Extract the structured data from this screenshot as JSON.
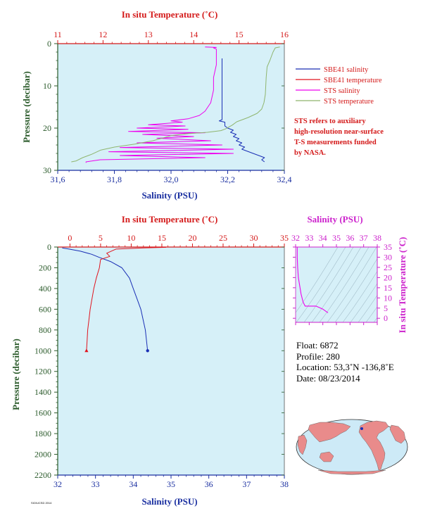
{
  "colors": {
    "plot_bg": "#d6f0f8",
    "sbe41_salinity": "#1a2fb5",
    "sbe41_temperature": "#e0141e",
    "sts_salinity": "#ee00ee",
    "sts_temperature": "#8fb56e",
    "red_axis": "#d41a1a",
    "blue_axis": "#1a2fa0",
    "green_axis": "#2a5a2a",
    "magenta_axis": "#cc22cc"
  },
  "chart_data": [
    {
      "id": "top",
      "type": "line",
      "top_axis_label": "In situ Temperature (˚C)",
      "top_ticks": [
        11,
        12,
        13,
        14,
        15,
        16
      ],
      "top_range": [
        11,
        16
      ],
      "bottom_axis_label": "Salinity (PSU)",
      "bottom_ticks": [
        "31,6",
        "31,8",
        "32,0",
        "32,2",
        "32,4"
      ],
      "bottom_range": [
        31.6,
        32.4
      ],
      "ylabel": "Pressure (decibar)",
      "y_ticks": [
        0,
        10,
        20,
        30
      ],
      "y_range": [
        0,
        30
      ],
      "legend": [
        {
          "label": "SBE41 salinity",
          "color_key": "sbe41_salinity"
        },
        {
          "label": "SBE41 temperature",
          "color_key": "sbe41_temperature"
        },
        {
          "label": "STS salinity",
          "color_key": "sts_salinity"
        },
        {
          "label": "STS temperature",
          "color_key": "sts_temperature"
        }
      ],
      "note": [
        "STS refers to auxiliary",
        "high-resolution near-surface",
        "T-S measurements funded",
        "by NASA."
      ],
      "series": [
        {
          "color_key": "sbe41_salinity",
          "axis": "bottom",
          "points": [
            [
              32.18,
              3.5
            ],
            [
              32.18,
              8
            ],
            [
              32.18,
              12
            ],
            [
              32.18,
              16
            ],
            [
              32.18,
              18
            ],
            [
              32.17,
              18.3
            ],
            [
              32.19,
              18.6
            ],
            [
              32.19,
              19.5
            ],
            [
              32.2,
              20
            ],
            [
              32.22,
              20.5
            ],
            [
              32.21,
              21
            ],
            [
              32.23,
              21.5
            ],
            [
              32.22,
              22
            ],
            [
              32.24,
              22.5
            ],
            [
              32.23,
              23
            ],
            [
              32.25,
              23.5
            ],
            [
              32.24,
              24
            ],
            [
              32.26,
              24.5
            ],
            [
              32.25,
              25
            ],
            [
              32.27,
              25.5
            ],
            [
              32.29,
              26
            ],
            [
              32.31,
              26.5
            ],
            [
              32.33,
              27
            ],
            [
              32.32,
              27.5
            ],
            [
              32.33,
              28
            ]
          ]
        },
        {
          "color_key": "sts_salinity",
          "axis": "bottom",
          "points": [
            [
              32.12,
              0.8
            ],
            [
              32.16,
              0.9
            ],
            [
              32.15,
              1.0
            ],
            [
              32.16,
              1.3
            ],
            [
              32.16,
              2
            ],
            [
              32.16,
              5
            ],
            [
              32.15,
              8
            ],
            [
              32.15,
              11
            ],
            [
              32.14,
              14
            ],
            [
              32.12,
              16
            ],
            [
              32.1,
              17
            ],
            [
              32.06,
              17.8
            ],
            [
              32.0,
              18.3
            ],
            [
              32.04,
              18.6
            ],
            [
              31.92,
              19.2
            ],
            [
              32.05,
              19.5
            ],
            [
              31.88,
              20.0
            ],
            [
              32.06,
              20.3
            ],
            [
              31.85,
              20.8
            ],
            [
              32.12,
              21.1
            ],
            [
              31.9,
              21.5
            ],
            [
              32.08,
              22.0
            ],
            [
              31.95,
              22.4
            ],
            [
              32.14,
              23.0
            ],
            [
              31.88,
              23.5
            ],
            [
              32.18,
              24.0
            ],
            [
              31.82,
              24.6
            ],
            [
              32.22,
              25.0
            ],
            [
              31.78,
              25.6
            ],
            [
              32.22,
              26.0
            ],
            [
              31.82,
              26.5
            ],
            [
              32.12,
              27.0
            ],
            [
              31.75,
              27.5
            ],
            [
              31.7,
              28.0
            ],
            [
              31.7,
              28.2
            ]
          ]
        },
        {
          "color_key": "sts_temperature",
          "axis": "top",
          "points": [
            [
              15.9,
              0.8
            ],
            [
              15.8,
              1.0
            ],
            [
              15.75,
              2.0
            ],
            [
              15.68,
              4
            ],
            [
              15.62,
              5.5
            ],
            [
              15.6,
              8
            ],
            [
              15.58,
              12
            ],
            [
              15.55,
              14
            ],
            [
              15.5,
              15.5
            ],
            [
              15.4,
              16.5
            ],
            [
              15.2,
              17.5
            ],
            [
              14.95,
              18.5
            ],
            [
              14.85,
              19.3
            ],
            [
              14.7,
              20.2
            ],
            [
              14.6,
              20.6
            ],
            [
              14.3,
              21.0
            ],
            [
              13.9,
              21.3
            ],
            [
              13.5,
              21.8
            ],
            [
              13.1,
              23.0
            ],
            [
              12.7,
              23.8
            ],
            [
              12.25,
              24.5
            ],
            [
              11.95,
              25.2
            ],
            [
              11.75,
              26.2
            ],
            [
              11.55,
              27.0
            ],
            [
              11.4,
              27.8
            ],
            [
              11.3,
              28.0
            ]
          ]
        }
      ]
    },
    {
      "id": "bottom",
      "type": "line",
      "top_axis_label": "In situ Temperature (˚C)",
      "top_ticks": [
        0,
        5,
        10,
        15,
        20,
        25,
        30,
        35
      ],
      "top_range": [
        -2,
        35
      ],
      "bottom_axis_label": "Salinity (PSU)",
      "bottom_ticks": [
        32,
        33,
        34,
        35,
        36,
        37,
        38
      ],
      "bottom_range": [
        32,
        38
      ],
      "ylabel": "Pressure (decibar)",
      "y_ticks": [
        0,
        200,
        400,
        600,
        800,
        1000,
        1200,
        1400,
        1600,
        1800,
        2000,
        2200
      ],
      "y_range": [
        0,
        2200
      ],
      "series": [
        {
          "color_key": "sbe41_salinity",
          "axis": "bottom",
          "points": [
            [
              32.12,
              8
            ],
            [
              32.3,
              20
            ],
            [
              32.6,
              40
            ],
            [
              32.9,
              70
            ],
            [
              33.1,
              100
            ],
            [
              33.4,
              140
            ],
            [
              33.7,
              200
            ],
            [
              33.9,
              300
            ],
            [
              34.0,
              400
            ],
            [
              34.1,
              500
            ],
            [
              34.2,
              600
            ],
            [
              34.26,
              700
            ],
            [
              34.32,
              800
            ],
            [
              34.35,
              900
            ],
            [
              34.38,
              1000
            ]
          ]
        },
        {
          "color_key": "sbe41_temperature",
          "axis": "top",
          "points": [
            [
              15.7,
              3
            ],
            [
              12,
              8
            ],
            [
              7.5,
              20
            ],
            [
              6.0,
              60
            ],
            [
              6.5,
              90
            ],
            [
              5.0,
              120
            ],
            [
              4.8,
              200
            ],
            [
              4.3,
              300
            ],
            [
              3.9,
              400
            ],
            [
              3.6,
              500
            ],
            [
              3.3,
              600
            ],
            [
              3.1,
              700
            ],
            [
              2.9,
              800
            ],
            [
              2.8,
              900
            ],
            [
              2.7,
              1000
            ]
          ]
        }
      ],
      "end_markers": [
        {
          "color_key": "sbe41_salinity",
          "axis": "bottom",
          "x": 34.38,
          "y": 1000,
          "shape": "circle"
        },
        {
          "color_key": "sbe41_temperature",
          "axis": "top",
          "x": 2.7,
          "y": 1000,
          "shape": "triangle"
        }
      ]
    },
    {
      "id": "ts",
      "type": "line",
      "top_axis_label": "Salinity (PSU)",
      "top_ticks": [
        32,
        33,
        34,
        35,
        36,
        37,
        38
      ],
      "top_range": [
        32,
        38
      ],
      "right_axis_label": "In situ Temperature (˚C)",
      "right_ticks": [
        0,
        5,
        10,
        15,
        20,
        25,
        30,
        35
      ],
      "right_range": [
        -2,
        35
      ],
      "series": [
        {
          "color_key": "sts_salinity",
          "axis": "top",
          "points": [
            [
              32.12,
              35
            ],
            [
              32.12,
              30
            ],
            [
              32.15,
              25
            ],
            [
              32.2,
              20
            ],
            [
              32.3,
              16
            ],
            [
              32.4,
              12
            ],
            [
              32.55,
              8
            ],
            [
              32.7,
              6
            ],
            [
              33.5,
              6
            ],
            [
              34,
              4.5
            ],
            [
              34.38,
              2.7
            ]
          ]
        }
      ]
    }
  ],
  "info": {
    "float": "Float:  6872",
    "profile": "Profile:  280",
    "location": "Location:  53,3˚N  -136,8˚E",
    "date": "Date:  08/23/2014"
  },
  "stamp": "SIO/UCSD 2014"
}
